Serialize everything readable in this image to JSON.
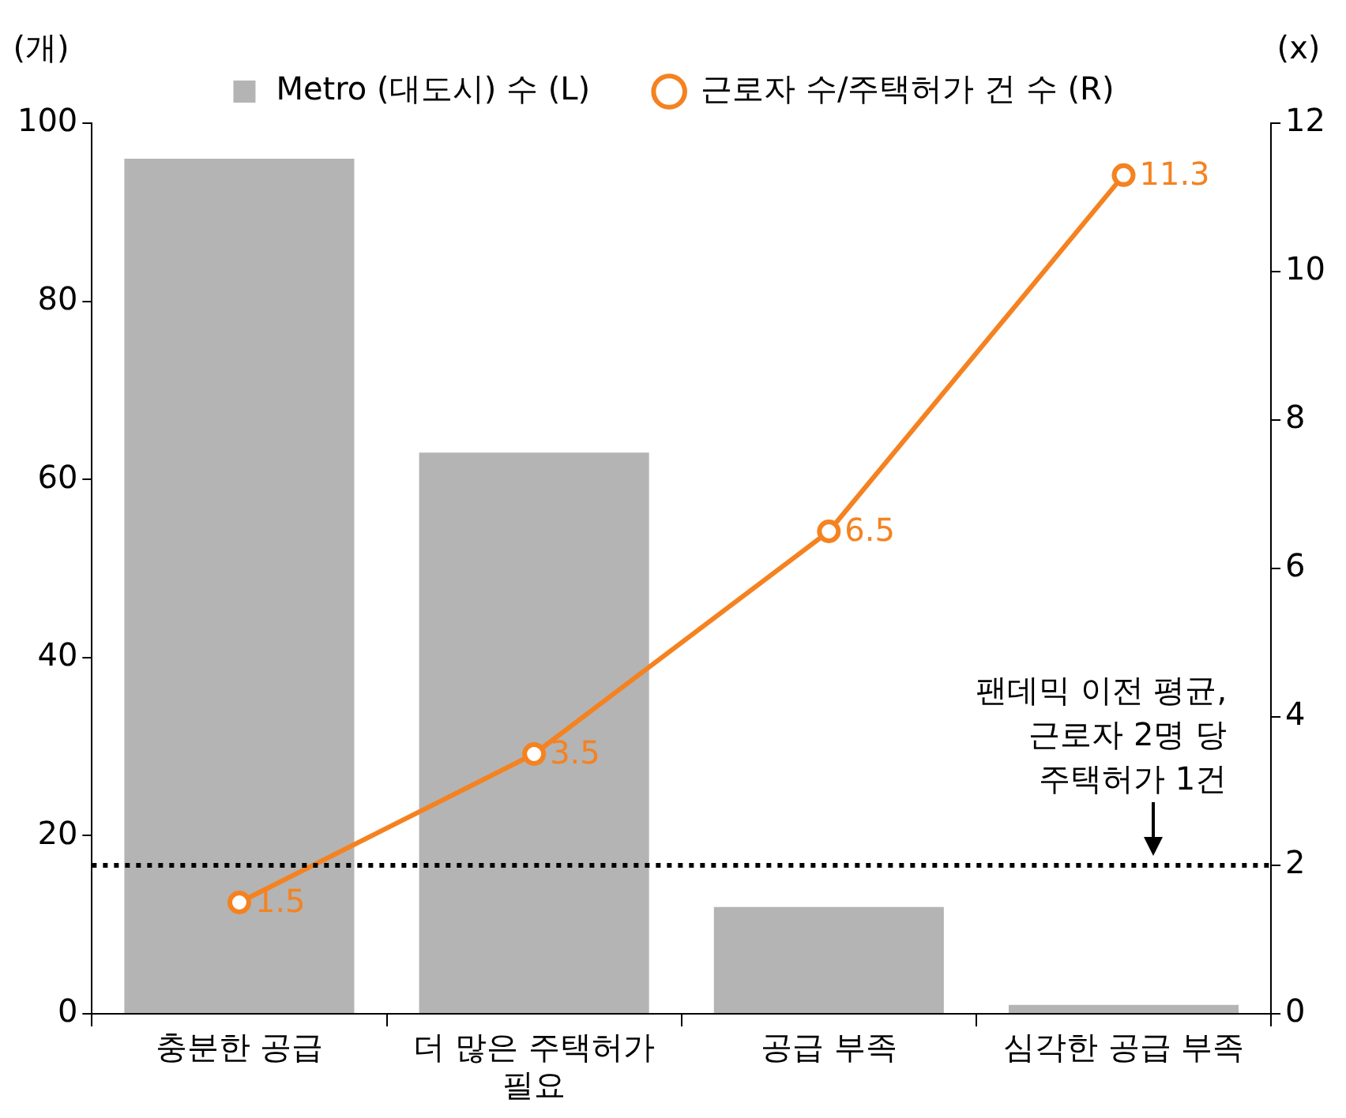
{
  "chart_data": {
    "type": "bar",
    "ylabel": "(개)",
    "y2label": "(x)",
    "categories": [
      "충분한 공급",
      "더 많은 주택허가\n필요",
      "공급 부족",
      "심각한 공급 부족"
    ],
    "series": [
      {
        "name": "Metro (대도시) 수 (L)",
        "color": "#b4b4b4",
        "values": [
          96,
          63,
          12,
          1
        ]
      },
      {
        "name": "근로자 수/주택허가 건 수 (R)",
        "type": "line",
        "axis": "y2",
        "color": "#f58220",
        "marker": "circle",
        "values": [
          1.5,
          3.5,
          6.5,
          11.3
        ],
        "value_labels": [
          "1.5",
          "3.5",
          "6.5",
          "11.3"
        ]
      }
    ],
    "ylim": [
      0,
      100
    ],
    "yticks": [
      0,
      20,
      40,
      60,
      80,
      100
    ],
    "y2lim": [
      0,
      12
    ],
    "y2ticks": [
      0,
      2,
      4,
      6,
      8,
      10,
      12
    ],
    "ref_lines": [
      {
        "axis": "y2",
        "value": 2,
        "label": "팬데믹 이전 평균,\n근로자 2명 당\n주택허가 1건",
        "color": "#000000",
        "line_style": "dotted"
      }
    ],
    "grid": false,
    "legend": "top"
  }
}
